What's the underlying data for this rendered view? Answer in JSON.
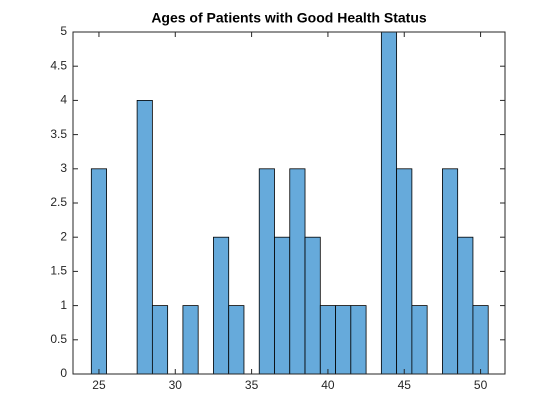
{
  "chart_data": {
    "type": "histogram",
    "title": "Ages of Patients with Good Health Status",
    "bins": [
      24.5,
      25.5,
      26.5,
      27.5,
      28.5,
      29.5,
      30.5,
      31.5,
      32.5,
      33.5,
      34.5,
      35.5,
      36.5,
      37.5,
      38.5,
      39.5,
      40.5,
      41.5,
      42.5,
      43.5,
      44.5,
      45.5,
      46.5,
      47.5,
      48.5,
      49.5,
      50.5
    ],
    "counts": [
      3,
      0,
      0,
      4,
      1,
      0,
      1,
      0,
      2,
      1,
      0,
      3,
      2,
      3,
      2,
      1,
      1,
      1,
      0,
      5,
      3,
      1,
      0,
      3,
      2,
      1
    ],
    "color": "#66aadb",
    "edgecolor": "#000000",
    "xlim": [
      23.3,
      51.6
    ],
    "xticks": [
      25,
      30,
      35,
      40,
      45,
      50
    ],
    "ylim": [
      0,
      5
    ],
    "yticks": [
      0,
      0.5,
      1,
      1.5,
      2,
      2.5,
      3,
      3.5,
      4,
      4.5,
      5
    ]
  }
}
